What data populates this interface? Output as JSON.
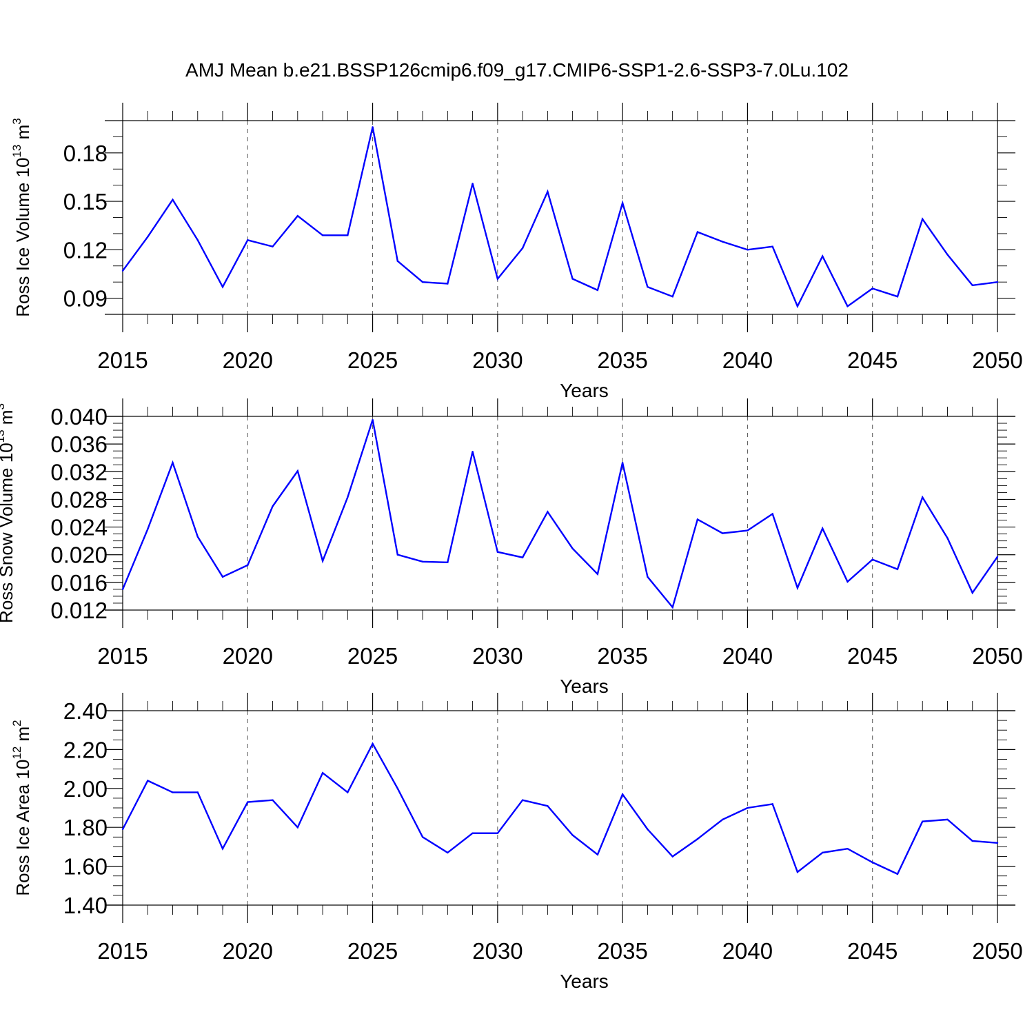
{
  "chart_data": [
    {
      "type": "line",
      "title": "AMJ Mean b.e21.BSSP126cmip6.f09_g17.CMIP6-SSP1-2.6-SSP3-7.0Lu.102",
      "xlabel": "Years",
      "ylabel": "Ross Ice Volume 10",
      "ylabel_exp": "13",
      "ylabel_unit": " m",
      "ylabel_unit_exp": "3",
      "xlim": [
        2015,
        2050
      ],
      "ylim": [
        0.08,
        0.2
      ],
      "xticks": [
        2015,
        2020,
        2025,
        2030,
        2035,
        2040,
        2045,
        2050
      ],
      "yticks": [
        0.09,
        0.12,
        0.15,
        0.18
      ],
      "ytick_labels": [
        "0.09",
        "0.12",
        "0.15",
        "0.18"
      ],
      "yminor_step": 0.01,
      "grid": "vertical dashed at major x ticks",
      "color": "#0000ff",
      "x": [
        2015,
        2016,
        2017,
        2018,
        2019,
        2020,
        2021,
        2022,
        2023,
        2024,
        2025,
        2026,
        2027,
        2028,
        2029,
        2030,
        2031,
        2032,
        2033,
        2034,
        2035,
        2036,
        2037,
        2038,
        2039,
        2040,
        2041,
        2042,
        2043,
        2044,
        2045,
        2046,
        2047,
        2048,
        2049,
        2050
      ],
      "values": [
        0.107,
        0.128,
        0.151,
        0.126,
        0.097,
        0.126,
        0.122,
        0.141,
        0.129,
        0.129,
        0.196,
        0.113,
        0.1,
        0.099,
        0.161,
        0.102,
        0.121,
        0.156,
        0.102,
        0.095,
        0.149,
        0.097,
        0.091,
        0.131,
        0.125,
        0.12,
        0.122,
        0.085,
        0.116,
        0.085,
        0.096,
        0.091,
        0.139,
        0.117,
        0.098,
        0.1
      ]
    },
    {
      "type": "line",
      "title": "",
      "xlabel": "Years",
      "ylabel": "Ross Snow Volume 10",
      "ylabel_exp": "13",
      "ylabel_unit": " m",
      "ylabel_unit_exp": "3",
      "xlim": [
        2015,
        2050
      ],
      "ylim": [
        0.012,
        0.04
      ],
      "xticks": [
        2015,
        2020,
        2025,
        2030,
        2035,
        2040,
        2045,
        2050
      ],
      "yticks": [
        0.012,
        0.016,
        0.02,
        0.024,
        0.028,
        0.032,
        0.036,
        0.04
      ],
      "ytick_labels": [
        "0.012",
        "0.016",
        "0.020",
        "0.024",
        "0.028",
        "0.032",
        "0.036",
        "0.040"
      ],
      "yminor_step": 0.001,
      "grid": "vertical dashed at major x ticks",
      "color": "#0000ff",
      "x": [
        2015,
        2016,
        2017,
        2018,
        2019,
        2020,
        2021,
        2022,
        2023,
        2024,
        2025,
        2026,
        2027,
        2028,
        2029,
        2030,
        2031,
        2032,
        2033,
        2034,
        2035,
        2036,
        2037,
        2038,
        2039,
        2040,
        2041,
        2042,
        2043,
        2044,
        2045,
        2046,
        2047,
        2048,
        2049,
        2050
      ],
      "values": [
        0.015,
        0.0237,
        0.0333,
        0.0226,
        0.0168,
        0.0185,
        0.027,
        0.0321,
        0.0191,
        0.0283,
        0.0395,
        0.02,
        0.019,
        0.0189,
        0.0349,
        0.0204,
        0.0196,
        0.0262,
        0.0209,
        0.0172,
        0.0333,
        0.0168,
        0.0124,
        0.0251,
        0.0231,
        0.0235,
        0.0259,
        0.0152,
        0.0238,
        0.0161,
        0.0193,
        0.0179,
        0.0283,
        0.0224,
        0.0145,
        0.0197
      ]
    },
    {
      "type": "line",
      "title": "",
      "xlabel": "Years",
      "ylabel": "Ross Ice Area 10",
      "ylabel_exp": "12",
      "ylabel_unit": " m",
      "ylabel_unit_exp": "2",
      "xlim": [
        2015,
        2050
      ],
      "ylim": [
        1.4,
        2.4
      ],
      "xticks": [
        2015,
        2020,
        2025,
        2030,
        2035,
        2040,
        2045,
        2050
      ],
      "yticks": [
        1.4,
        1.6,
        1.8,
        2.0,
        2.2,
        2.4
      ],
      "ytick_labels": [
        "1.40",
        "1.60",
        "1.80",
        "2.00",
        "2.20",
        "2.40"
      ],
      "yminor_step": 0.05,
      "grid": "vertical dashed at major x ticks",
      "color": "#0000ff",
      "x": [
        2015,
        2016,
        2017,
        2018,
        2019,
        2020,
        2021,
        2022,
        2023,
        2024,
        2025,
        2026,
        2027,
        2028,
        2029,
        2030,
        2031,
        2032,
        2033,
        2034,
        2035,
        2036,
        2037,
        2038,
        2039,
        2040,
        2041,
        2042,
        2043,
        2044,
        2045,
        2046,
        2047,
        2048,
        2049,
        2050
      ],
      "values": [
        1.79,
        2.04,
        1.98,
        1.98,
        1.69,
        1.93,
        1.94,
        1.8,
        2.08,
        1.98,
        2.23,
        2.0,
        1.75,
        1.67,
        1.77,
        1.77,
        1.94,
        1.91,
        1.76,
        1.66,
        1.97,
        1.79,
        1.65,
        1.74,
        1.84,
        1.9,
        1.92,
        1.57,
        1.67,
        1.69,
        1.62,
        1.56,
        1.83,
        1.84,
        1.73,
        1.72
      ]
    }
  ]
}
